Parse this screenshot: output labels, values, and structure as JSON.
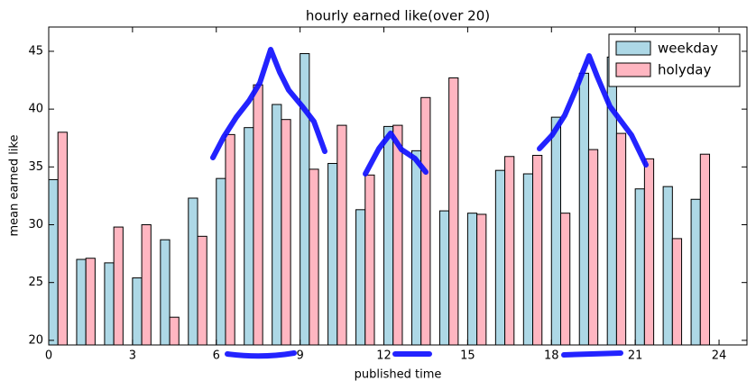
{
  "chart_data": {
    "type": "bar",
    "title": "hourly earned like(over 20)",
    "x_label": "published time",
    "y_label": "mean earned like",
    "x": [
      0,
      1,
      2,
      3,
      4,
      5,
      6,
      7,
      8,
      9,
      10,
      11,
      12,
      13,
      14,
      15,
      16,
      17,
      18,
      19,
      20,
      21,
      22,
      23
    ],
    "series": [
      {
        "name": "weekday",
        "color": "#add8e6",
        "values": [
          33.9,
          27.0,
          26.7,
          25.4,
          28.7,
          32.3,
          34.0,
          38.4,
          40.4,
          44.8,
          35.3,
          31.3,
          38.5,
          36.4,
          31.2,
          31.0,
          34.7,
          34.4,
          39.3,
          43.1,
          44.5,
          33.1,
          33.3,
          32.2
        ]
      },
      {
        "name": "holyday",
        "color": "#ffb6c1",
        "values": [
          38.0,
          27.1,
          29.8,
          30.0,
          22.0,
          29.0,
          37.8,
          42.1,
          39.1,
          34.8,
          38.6,
          34.3,
          38.6,
          41.0,
          42.7,
          30.9,
          35.9,
          36.0,
          31.0,
          36.5,
          37.9,
          35.7,
          28.8,
          36.1
        ]
      }
    ],
    "xlim": [
      0,
      25
    ],
    "xticks": [
      0,
      3,
      6,
      9,
      12,
      15,
      18,
      21,
      24
    ],
    "ylim": [
      19.6,
      47.1
    ],
    "yticks": [
      20,
      25,
      30,
      35,
      40,
      45
    ],
    "legend": "upper right",
    "grid": false
  }
}
